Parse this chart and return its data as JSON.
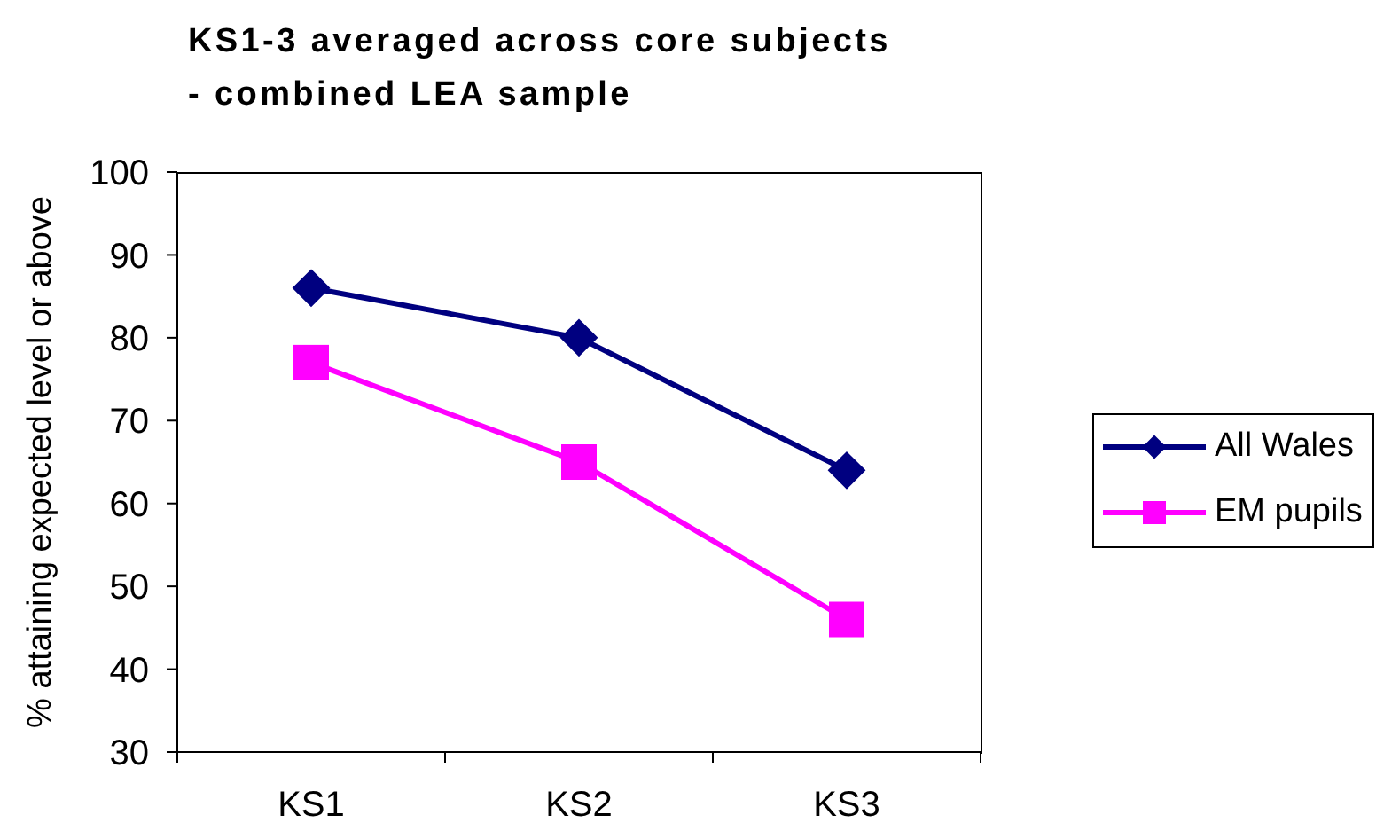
{
  "chart_data": {
    "type": "line",
    "title": "KS1-3 averaged across core subjects\n- combined LEA sample",
    "ylabel": "% attaining expected level or above",
    "categories": [
      "KS1",
      "KS2",
      "KS3"
    ],
    "series": [
      {
        "name": "All Wales",
        "color": "#000080",
        "marker": "diamond",
        "values": [
          86,
          80,
          64
        ]
      },
      {
        "name": "EM pupils",
        "color": "#ff00ff",
        "marker": "square",
        "values": [
          77,
          65,
          46
        ]
      }
    ],
    "ylim": [
      30,
      100
    ],
    "yticks": [
      30,
      40,
      50,
      60,
      70,
      80,
      90,
      100
    ],
    "legend": "right"
  }
}
